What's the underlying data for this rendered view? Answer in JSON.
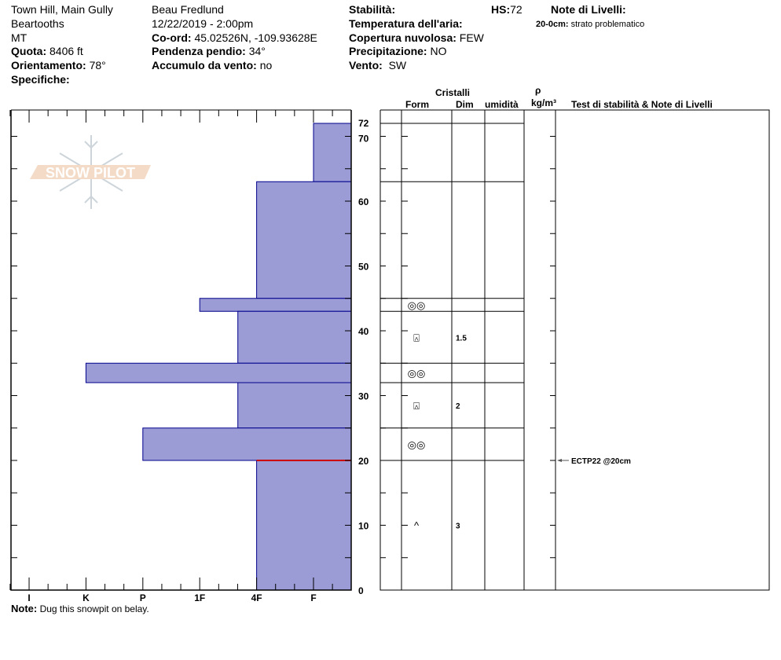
{
  "header": {
    "location": "Town Hill, Main Gully",
    "range": "Beartooths",
    "state": "MT",
    "elevation_label": "Quota:",
    "elevation": "8406 ft",
    "aspect_label": "Orientamento:",
    "aspect": "78°",
    "specifics_label": "Specifiche:",
    "observer": "Beau  Fredlund",
    "datetime": "12/22/2019 - 2:00pm",
    "coord_label": "Co-ord:",
    "coord": "45.02526N, -109.93628E",
    "slope_label": "Pendenza pendio:",
    "slope": "34°",
    "windload_label": "Accumulo da vento:",
    "windload": "no",
    "stability_label": "Stabilità:",
    "hs_label": "HS:",
    "hs": "72",
    "airtemp_label": "Temperatura dell'aria:",
    "sky_label": "Copertura nuvolosa:",
    "sky": "FEW",
    "precip_label": "Precipitazione:",
    "precip": "NO",
    "wind_label": "Vento:",
    "wind": "SW",
    "layer_notes_label": "Note di Livelli:",
    "layer_note_range": "20-0cm:",
    "layer_note": "strato problematico"
  },
  "table_headers": {
    "crystals": "Cristalli",
    "form": "Form",
    "size": "Dim",
    "moisture": "umidità",
    "rho": "ρ",
    "density_unit": "kg/m³",
    "tests": "Test di stabilità & Note di Livelli"
  },
  "note_label": "Note:",
  "note": "Dug this snowpit on belay.",
  "logo_text": "SNOW PILOT",
  "colors": {
    "bar_fill": "#9b9bd5",
    "bar_stroke": "#00008b",
    "problem": "#cc0000"
  },
  "chart_data": {
    "type": "bar",
    "ylim": [
      0,
      72
    ],
    "yticks": [
      0,
      10,
      20,
      30,
      40,
      50,
      60,
      70,
      72
    ],
    "hardness_labels": [
      "I",
      "K",
      "P",
      "1F",
      "4F",
      "F"
    ],
    "hardness_scale_note": "F=1,4F=2,1F=3,P=4,K=5,I=6",
    "layers": [
      {
        "bottom": 63,
        "top": 72,
        "hardness": 1
      },
      {
        "bottom": 45,
        "top": 63,
        "hardness": 2
      },
      {
        "bottom": 43,
        "top": 45,
        "hardness": 3,
        "form": "◎◎"
      },
      {
        "bottom": 35,
        "top": 43,
        "hardness": 2.33,
        "form": "⍓",
        "size": "1.5"
      },
      {
        "bottom": 32,
        "top": 35,
        "hardness": 5,
        "form": "◎◎"
      },
      {
        "bottom": 25,
        "top": 32,
        "hardness": 2.33,
        "form": "⍓",
        "size": "2"
      },
      {
        "bottom": 20,
        "top": 25,
        "hardness": 4,
        "form": "◎◎"
      },
      {
        "bottom": 0,
        "top": 20,
        "hardness": 2,
        "form": "^",
        "size": "3"
      }
    ],
    "problem_depth": 20,
    "tests": [
      {
        "depth": 20,
        "text": "ECTP22 @20cm"
      }
    ]
  }
}
